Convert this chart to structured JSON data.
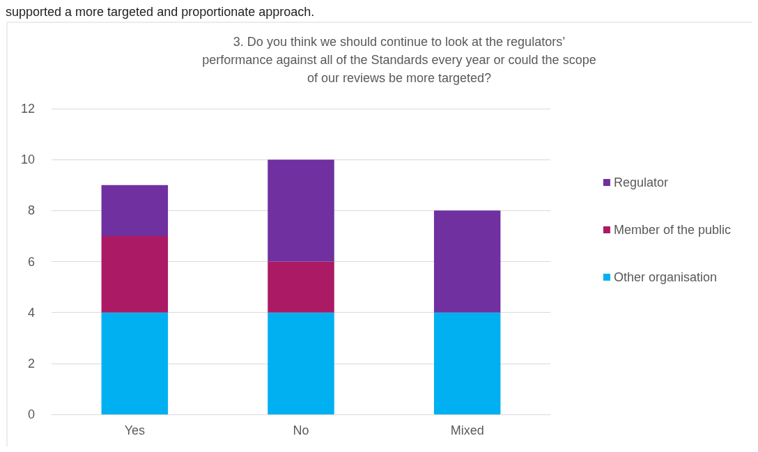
{
  "chart_data": {
    "type": "bar",
    "stacked": true,
    "title": "3. Do you think we should continue to look at the regulators’\nperformance against all of the Standards every year or could the scope\nof our reviews be more targeted?",
    "annotations": [
      "supported a more targeted and proportionate approach."
    ],
    "categories": [
      "Yes",
      "No",
      "Mixed"
    ],
    "series": [
      {
        "name": "Other organisation",
        "color": "#00b0f0",
        "values": [
          4,
          4,
          4
        ]
      },
      {
        "name": "Member of the public",
        "color": "#ab1a65",
        "values": [
          3,
          2,
          0
        ]
      },
      {
        "name": "Regulator",
        "color": "#7030a0",
        "values": [
          2,
          4,
          4
        ]
      }
    ],
    "ylim": [
      0,
      12
    ],
    "yticks": [
      0,
      2,
      4,
      6,
      8,
      10,
      12
    ],
    "grid": "y",
    "legend": "right"
  }
}
